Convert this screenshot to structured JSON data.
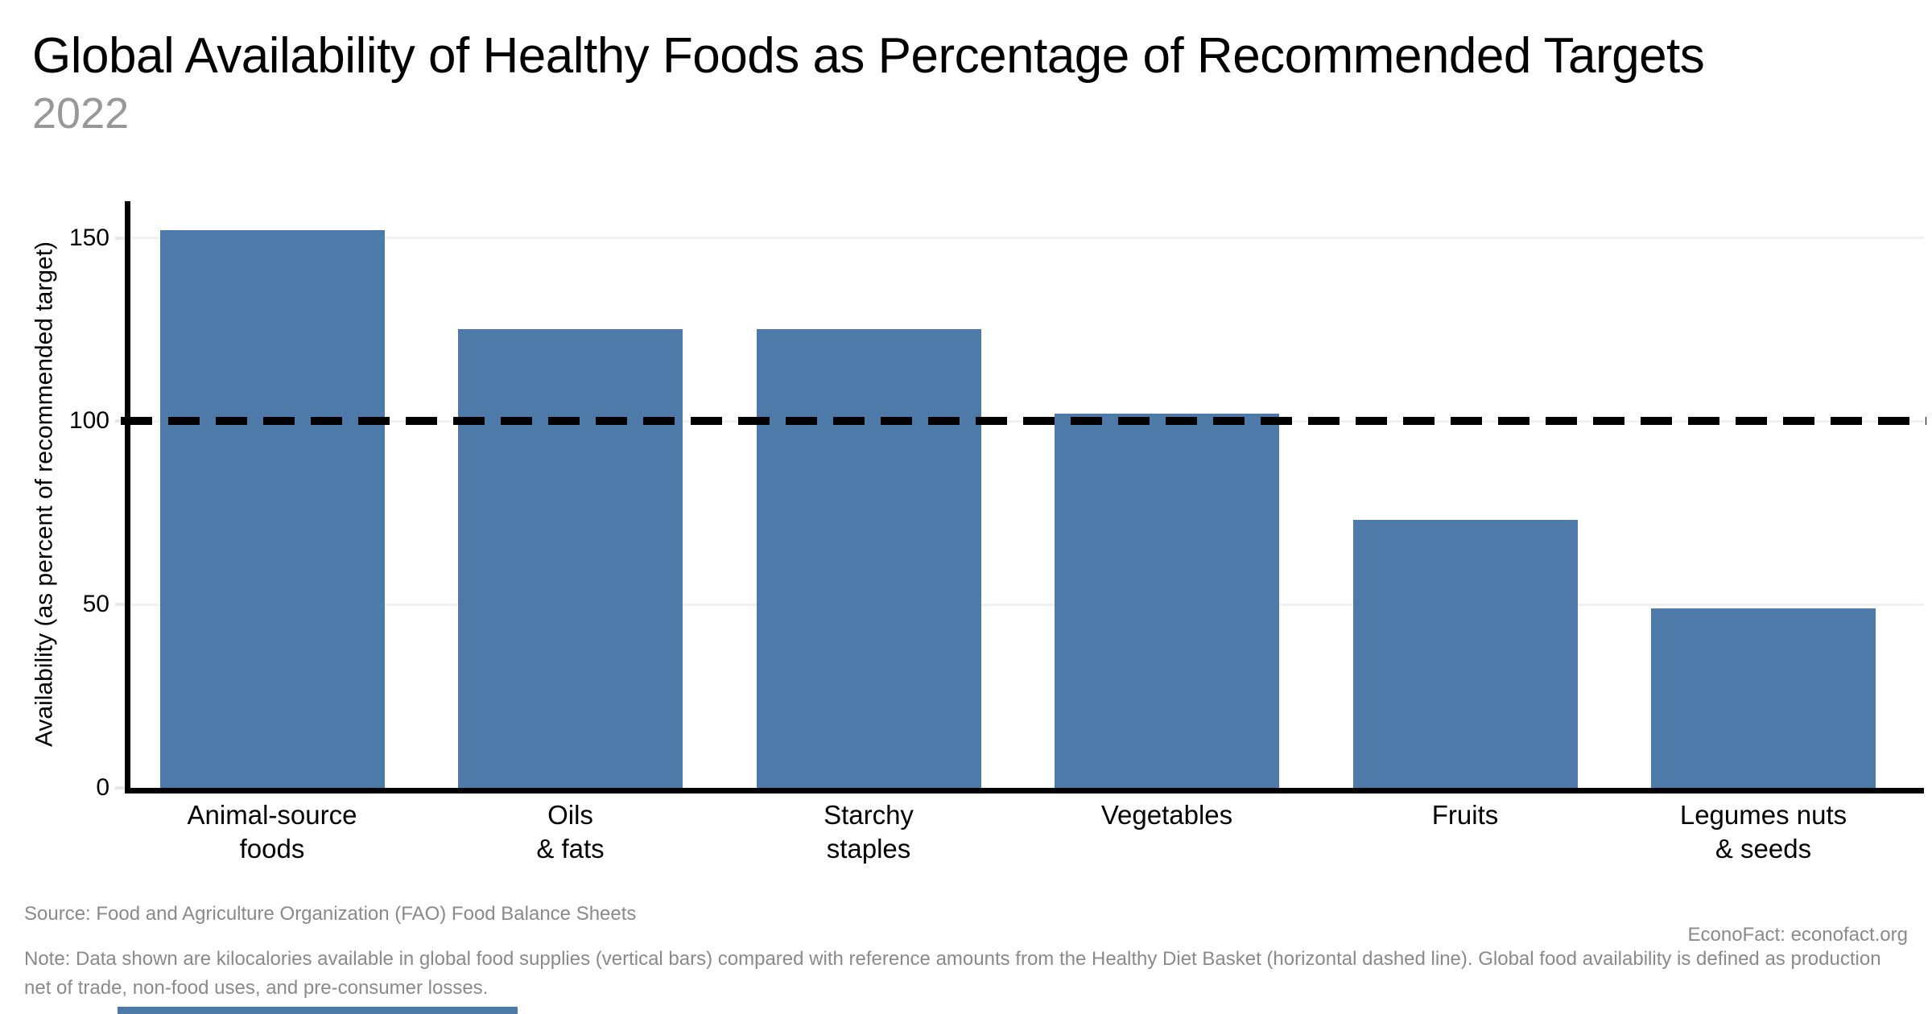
{
  "header": {
    "title": "Global Availability of Healthy Foods as Percentage of Recommended Targets",
    "subtitle": "2022"
  },
  "chart_data": {
    "type": "bar",
    "title": "Global Availability of Healthy Foods as Percentage of Recommended Targets",
    "subtitle": "2022",
    "categories": [
      "Animal-source\nfoods",
      "Oils\n& fats",
      "Starchy\nstaples",
      "Vegetables",
      "Fruits",
      "Legumes nuts\n& seeds"
    ],
    "values": [
      152,
      125,
      125,
      102,
      73,
      49
    ],
    "xlabel": "",
    "ylabel": "Availability (as percent of recommended target)",
    "yticks": [
      0,
      50,
      100,
      150
    ],
    "ylim": [
      0,
      160
    ],
    "target_line": 100,
    "grid": "horizontal",
    "legend": "none"
  },
  "colors": {
    "bar": "#4d7aa8",
    "target_line": "#000000",
    "grid": "#f1f1f1",
    "axis": "#000000",
    "subtitle_text": "#989898",
    "footer_text": "#8a8a8a"
  },
  "footer": {
    "source": "Source: Food and Agriculture Organization (FAO) Food Balance Sheets",
    "credit": "EconoFact: econofact.org",
    "note_lines": [
      "Note: Data shown are kilocalories available in global food supplies (vertical bars) compared with reference amounts from the Healthy Diet Basket (horizontal dashed line). Global food availability is defined as production",
      "net of trade, non-food uses, and pre-consumer losses."
    ]
  }
}
